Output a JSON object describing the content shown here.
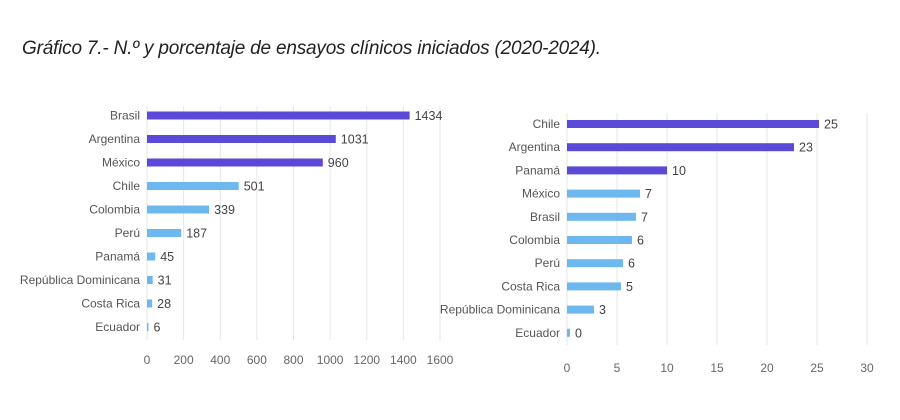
{
  "title": "Gráfico 7.- N.º y porcentaje de ensayos clínicos iniciados (2020-2024).",
  "colors": {
    "dark": "#5b4ad8",
    "light": "#6cb8ef"
  },
  "chart_data": [
    {
      "type": "bar",
      "orientation": "horizontal",
      "categories": [
        "Brasil",
        "Argentina",
        "México",
        "Chile",
        "Colombia",
        "Perú",
        "Panamá",
        "República Dominicana",
        "Costa Rica",
        "Ecuador"
      ],
      "values": [
        1434,
        1031,
        960,
        501,
        339,
        187,
        45,
        31,
        28,
        6
      ],
      "value_labels": [
        "1434",
        "1031",
        "960",
        "501",
        "339",
        "187",
        "45",
        "31",
        "28",
        "6"
      ],
      "highlighted": [
        true,
        true,
        true,
        false,
        false,
        false,
        false,
        false,
        false,
        false
      ],
      "xlim": [
        0,
        1600
      ],
      "xticks": [
        "0",
        "200",
        "400",
        "600",
        "800",
        "1000",
        "1200",
        "1400",
        "1600"
      ],
      "grid": true
    },
    {
      "type": "bar",
      "orientation": "horizontal",
      "categories": [
        "Chile",
        "Argentina",
        "Panamá",
        "México",
        "Brasil",
        "Colombia",
        "Perú",
        "Costa Rica",
        "República Dominicana",
        "Ecuador"
      ],
      "values": [
        25.2,
        22.7,
        10,
        7.3,
        6.9,
        6.5,
        5.6,
        5.4,
        2.7,
        0.3
      ],
      "value_labels": [
        "25",
        "23",
        "10",
        "7",
        "7",
        "6",
        "6",
        "5",
        "3",
        "0"
      ],
      "highlighted": [
        true,
        true,
        true,
        false,
        false,
        false,
        false,
        false,
        false,
        false
      ],
      "xlim": [
        0,
        30
      ],
      "xticks": [
        "0",
        "5",
        "10",
        "15",
        "20",
        "25",
        "30"
      ],
      "grid": true
    }
  ]
}
